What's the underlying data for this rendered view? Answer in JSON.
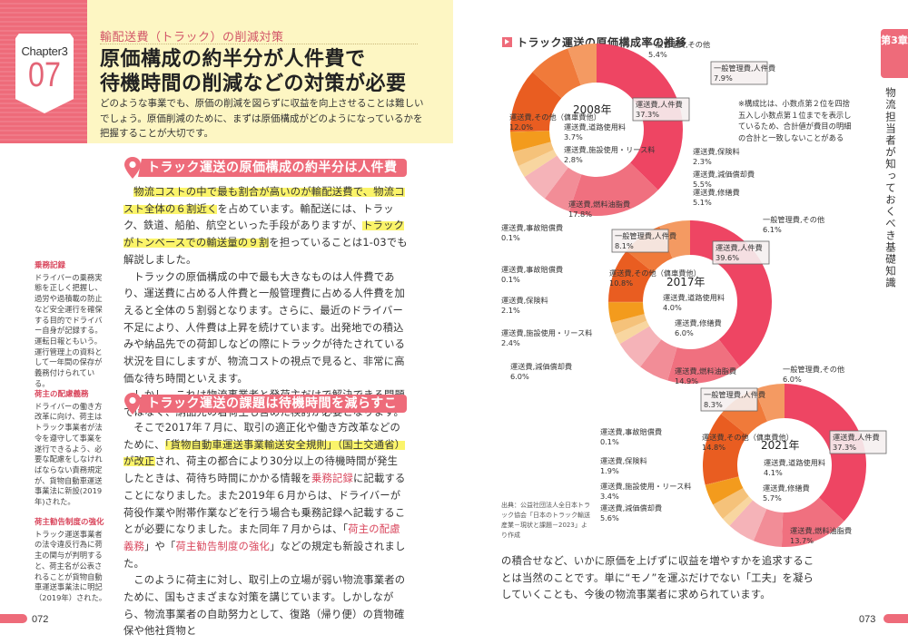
{
  "left_page": {
    "chapter": {
      "label": "Chapter3",
      "number": "07"
    },
    "kicker": "輸配送費（トラック）の削減対策",
    "title_line1": "原価構成の約半分が人件費で",
    "title_line2": "待機時間の削減などの対策が必要",
    "lead": "どのような事業でも、原価の削減を図らずに収益を向上させることは難しいでしょう。原価削減のために、まずは原価構成がどのようになっているかを把握することが大切です。",
    "section1": {
      "heading": "トラック運送の原価構成の約半分は人件費",
      "p1_hl1": "物流コストの中で最も割合が高いのが輸配送費で、物流コスト全体の６割近く",
      "p1_t1": "を占めています。輸配送には、トラック、鉄道、船舶、航空といった手段がありますが、",
      "p1_hl2": "トラックがトンベースでの輸送量の９割",
      "p1_t2": "を担っていることは1-03でも解説しました。",
      "p2": "トラックの原価構成の中で最も大きなものは人件費であり、運送費に占める人件費と一般管理費に占める人件費を加えると全体の５割弱となります。さらに、最近のドライバー不足により、人件費は上昇を続けています。出発地での積込みや納品先での荷卸しなどの際にトラックが待たされている状況を目にしますが、物流コストの視点で見ると、非常に高価な待ち時間といえます。",
      "p3": "しかし、これは物流事業者と発荷主だけで解決できる問題ではなく、納品先の着荷主も含めた検討が必要となります。"
    },
    "section2": {
      "heading": "トラック運送の課題は待機時間を減らすこと",
      "p1_t1": "そこで2017年７月に、取引の適正化や働き方改革などのために、",
      "p1_hl": "「貨物自動車運送事業輸送安全規則」（国土交通省）が改正",
      "p1_t2": "され、荷主の都合により30分以上の待機時間が発生したときは、荷待ち時間にかかる情報を",
      "p1_red1": "乗務記録",
      "p1_t3": "に記載することになりました。また2019年６月からは、ドライバーが荷役作業や附帯作業などを行う場合も乗務記録へ記載することが必要になりました。また同年７月からは、「",
      "p1_red2": "荷主の配慮義務",
      "p1_t4": "」や「",
      "p1_red3": "荷主勧告制度の強化",
      "p1_t5": "」などの規定も新設されました。",
      "p2": "このように荷主に対し、取引上の立場が弱い物流事業者のために、国もさまざまな対策を講じています。しかしながら、物流事業者の自助努力として、復路（帰り便）の貨物確保や他社貨物と"
    },
    "side_notes": [
      {
        "term": "乗務記録",
        "text": "ドライバーの乗務実態を正しく把握し、過労や過積載の防止など安全運行を確保する目的でドライバー自身が記録する。運転日報ともいう。運行管理上の資料として一年間の保存が義務付けられている。"
      },
      {
        "term": "荷主の配慮義務",
        "text": "ドライバーの働き方改革に向け、荷主はトラック事業者が法令を遵守して事業を遂行できるよう、必要な配慮をしなければならない責務規定が、貨物自動車運送事業法に新設(2019年)された。"
      },
      {
        "term": "荷主勧告制度の強化",
        "text": "トラック運送事業者の法令違反行為に荷主の関与が判明すると、荷主名が公表されることが貨物自動車運送事業法に明記（2019年）された。"
      }
    ],
    "page_number": "072"
  },
  "right_page": {
    "chart_heading": "トラック運送の原価構成率の推移",
    "note": "※構成比は、小数点第２位を四捨五入し小数点第１位までを表示しているため、合計値が費目の明細の合計と一致しないことがある",
    "source": "出典：公益社団法人全日本トラック協会「日本のトラック輸送産業－現状と課題－2023」より作成",
    "body": "の積合せなど、いかに原価を上げずに収益を増やすかを追求することは当然のことです。単に“モノ”を運ぶだけでない「工夫」を凝らしていくことも、今後の物流事業者に求められています。",
    "side_tab": "第3章",
    "side_vertical": "物流担当者が知っておくべき基礎知識",
    "page_number": "073"
  },
  "chart_data": [
    {
      "type": "pie",
      "title": "2008年",
      "categories": [
        "運送費,人件費",
        "運送費,燃料油脂費",
        "運送費,修繕費",
        "運送費,減価償却費",
        "運送費,保険料",
        "運送費,施設使用・リース料",
        "運送費,道路使用料",
        "運送費,事故賠償費",
        "運送費,その他(傭車費他)",
        "一般管理費,人件費",
        "一般管理費,その他"
      ],
      "values": [
        37.3,
        17.8,
        5.1,
        5.5,
        2.3,
        2.8,
        3.7,
        0.1,
        12.0,
        7.9,
        5.4
      ],
      "labels": [
        {
          "name": "運送費,人件費",
          "value": "37.3%"
        },
        {
          "name": "運送費,燃料油脂費",
          "value": "17.8%"
        },
        {
          "name": "運送費,修繕費",
          "value": "5.1%"
        },
        {
          "name": "運送費,減価償却費",
          "value": "5.5%"
        },
        {
          "name": "運送費,保険料",
          "value": "2.3%"
        },
        {
          "name": "運送費,施設使用・リース料",
          "value": "2.8%"
        },
        {
          "name": "運送費,道路使用料",
          "value": "3.7%"
        },
        {
          "name": "運送費,事故賠償費",
          "value": "0.1%"
        },
        {
          "name": "運送費,その他(傭車費他)",
          "value": "12.0%"
        },
        {
          "name": "一般管理費,人件費",
          "value": "7.9%"
        },
        {
          "name": "一般管理費,その他",
          "value": "5.4%"
        }
      ]
    },
    {
      "type": "pie",
      "title": "2017年",
      "categories": [
        "運送費,人件費",
        "運送費,燃料油脂費",
        "運送費,修繕費",
        "運送費,減価償却費",
        "運送費,保険料",
        "運送費,施設使用・リース料",
        "運送費,道路使用料",
        "運送費,事故賠償費",
        "運送費,その他(傭車費他)",
        "一般管理費,人件費",
        "一般管理費,その他"
      ],
      "values": [
        39.6,
        14.9,
        6.0,
        6.0,
        2.1,
        2.4,
        4.0,
        0.1,
        10.8,
        8.1,
        6.1
      ],
      "labels": [
        {
          "name": "運送費,人件費",
          "value": "39.6%"
        },
        {
          "name": "運送費,燃料油脂費",
          "value": "14.9%"
        },
        {
          "name": "運送費,修繕費",
          "value": "6.0%"
        },
        {
          "name": "運送費,減価償却費",
          "value": "6.0%"
        },
        {
          "name": "運送費,保険料",
          "value": "2.1%"
        },
        {
          "name": "運送費,施設使用・リース料",
          "value": "2.4%"
        },
        {
          "name": "運送費,道路使用料",
          "value": "4.0%"
        },
        {
          "name": "運送費,事故賠償費",
          "value": "0.1%"
        },
        {
          "name": "運送費,その他(傭車費他)",
          "value": "10.8%"
        },
        {
          "name": "一般管理費,人件費",
          "value": "8.1%"
        },
        {
          "name": "一般管理費,その他",
          "value": "6.1%"
        }
      ]
    },
    {
      "type": "pie",
      "title": "2021年",
      "categories": [
        "運送費,人件費",
        "運送費,燃料油脂費",
        "運送費,修繕費",
        "運送費,減価償却費",
        "運送費,保険料",
        "運送費,施設使用・リース料",
        "運送費,道路使用料",
        "運送費,事故賠償費",
        "運送費,その他(傭車費他)",
        "一般管理費,人件費",
        "一般管理費,その他"
      ],
      "values": [
        37.3,
        13.7,
        5.7,
        5.6,
        1.9,
        3.4,
        4.1,
        0.1,
        14.8,
        8.3,
        6.0
      ],
      "labels": [
        {
          "name": "運送費,人件費",
          "value": "37.3%"
        },
        {
          "name": "運送費,燃料油脂費",
          "value": "13.7%"
        },
        {
          "name": "運送費,修繕費",
          "value": "5.7%"
        },
        {
          "name": "運送費,減価償却費",
          "value": "5.6%"
        },
        {
          "name": "運送費,保険料",
          "value": "1.9%"
        },
        {
          "name": "運送費,施設使用・リース料",
          "value": "3.4%"
        },
        {
          "name": "運送費,道路使用料",
          "value": "4.1%"
        },
        {
          "name": "運送費,事故賠償費",
          "value": "0.1%"
        },
        {
          "name": "運送費,その他(傭車費他)",
          "value": "14.8%"
        },
        {
          "name": "一般管理費,人件費",
          "value": "8.3%"
        },
        {
          "name": "一般管理費,その他",
          "value": "6.0%"
        }
      ]
    }
  ],
  "colors": {
    "accent": "#ee6b7a",
    "title_bg": "#fdf6c3",
    "highlight": "#fbf46a",
    "red_text": "#d9465c",
    "segments": [
      "#ee4563",
      "#f0707f",
      "#f28d97",
      "#f5b3b8",
      "#f8d6a0",
      "#f5c27a",
      "#f39b1d",
      "#f08a1d",
      "#e95d21",
      "#f07a3a",
      "#f49a62"
    ]
  }
}
